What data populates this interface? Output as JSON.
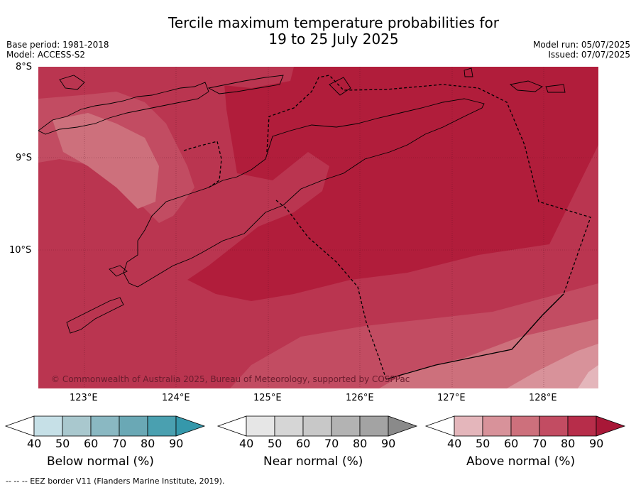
{
  "header": {
    "title_line1": "Tercile maximum temperature probabilities for",
    "title_line2": "19 to 25 July 2025",
    "base_period": "Base period: 1981-2018",
    "model": "Model: ACCESS-S2",
    "model_run": "Model run: 05/07/2025",
    "issued": "Issued: 07/07/2025"
  },
  "map": {
    "lat_labels": [
      "8°S",
      "9°S",
      "10°S"
    ],
    "lon_labels": [
      "123°E",
      "124°E",
      "125°E",
      "126°E",
      "127°E",
      "128°E"
    ],
    "copyright": "© Commonwealth of Australia 2025, Bureau of Meteorology, supported by COSPPac",
    "colors": {
      "ocean_base": "#b11d3b",
      "band_80_90": "#ba3550",
      "band_70_80": "#c24c62",
      "band_60_70": "#cd707c",
      "band_50_60": "#d8929a",
      "band_40_50": "#e4b6bb"
    }
  },
  "colorbars": [
    {
      "label": "Below normal (%)",
      "ticks": [
        "40",
        "50",
        "60",
        "70",
        "80",
        "90"
      ],
      "colors": [
        "#ffffff",
        "#c6e0e7",
        "#a9c8ce",
        "#8ab8c2",
        "#6aa8b5",
        "#4aa0b0",
        "#3598ab"
      ]
    },
    {
      "label": "Near normal (%)",
      "ticks": [
        "40",
        "50",
        "60",
        "70",
        "80",
        "90"
      ],
      "colors": [
        "#ffffff",
        "#e6e6e6",
        "#d6d6d6",
        "#c8c8c8",
        "#b3b3b3",
        "#a3a3a3",
        "#8a8a8a"
      ]
    },
    {
      "label": "Above normal (%)",
      "ticks": [
        "40",
        "50",
        "60",
        "70",
        "80",
        "90"
      ],
      "colors": [
        "#ffffff",
        "#e4b6bb",
        "#d8929a",
        "#cd707c",
        "#c24c62",
        "#b72d4a",
        "#a81737"
      ]
    }
  ],
  "footnote": "--  --  -- EEZ border V11 (Flanders Marine Institute, 2019)."
}
